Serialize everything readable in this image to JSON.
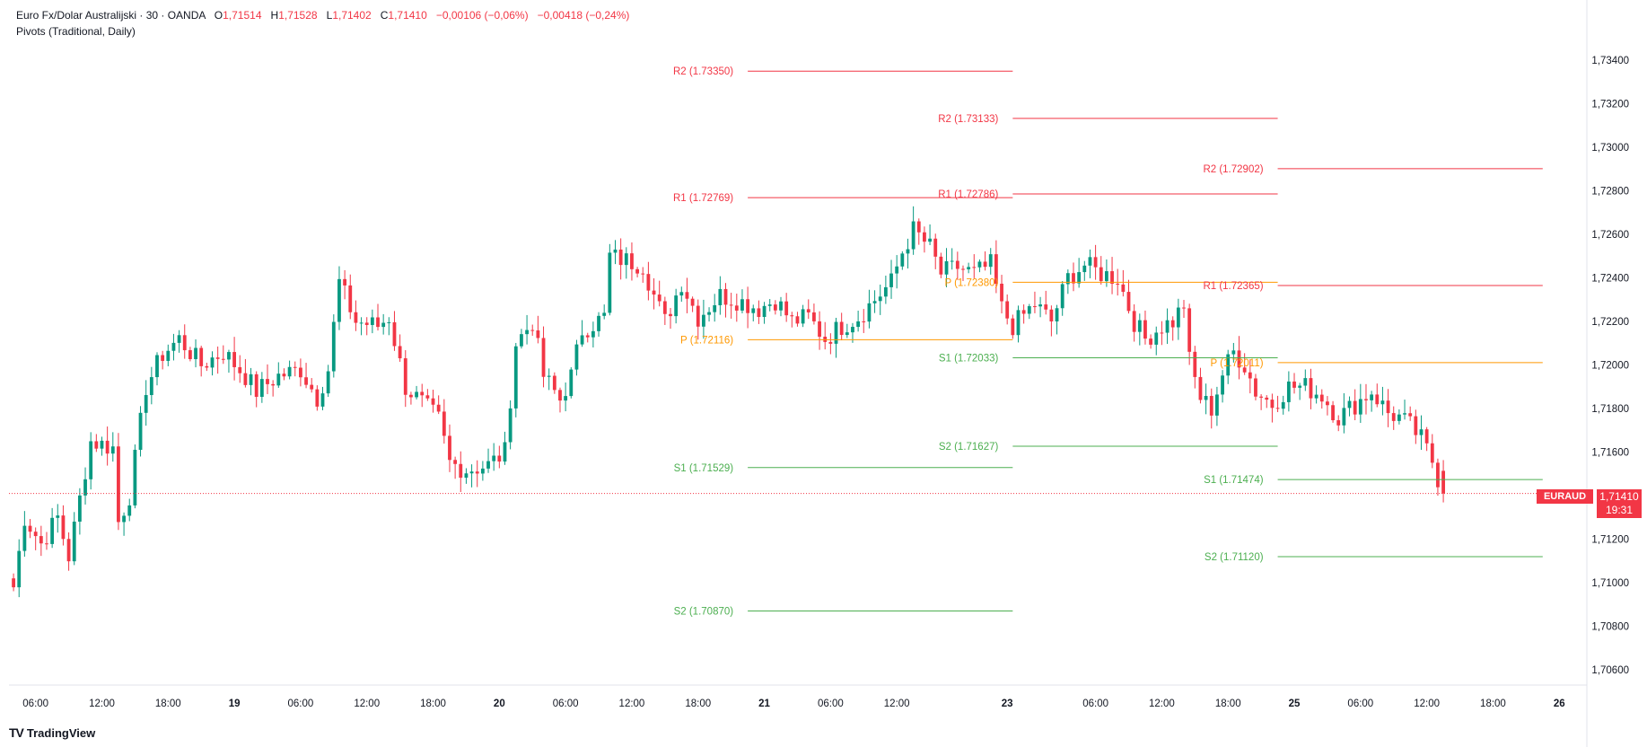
{
  "header": {
    "symbol": "Euro Fx/Dolar Australijski · 30 · OANDA",
    "o_label": "O",
    "o_value": "1,71514",
    "h_label": "H",
    "h_value": "1,71528",
    "l_label": "L",
    "l_value": "1,71402",
    "c_label": "C",
    "c_value": "1,71410",
    "change": "−0,00106 (−0,06%)",
    "change2": "−0,00418 (−0,24%)",
    "indicator": "Pivots (Traditional, Daily)"
  },
  "footer": {
    "brand": "TradingView",
    "logo_icon": "tradingview-logo-icon"
  },
  "last_price": {
    "symbol": "EURAUD",
    "price": "1,71410",
    "countdown": "19:31",
    "color": "#f23645"
  },
  "chart_data": {
    "type": "candlestick",
    "instrument": "EURAUD",
    "timeframe": "30",
    "y_axis": {
      "ticks": [
        "1,73400",
        "1,73200",
        "1,73000",
        "1,72800",
        "1,72600",
        "1,72400",
        "1,72200",
        "1,72000",
        "1,71800",
        "1,71600",
        "1,71200",
        "1,71000",
        "1,70800",
        "1,70600"
      ],
      "tick_values": [
        1.734,
        1.732,
        1.73,
        1.728,
        1.726,
        1.724,
        1.722,
        1.72,
        1.718,
        1.716,
        1.712,
        1.71,
        1.708,
        1.706
      ],
      "range": [
        1.7053,
        1.7352
      ]
    },
    "x_axis": {
      "ticks": [
        {
          "label": "06:00",
          "bold": false,
          "t": 4
        },
        {
          "label": "12:00",
          "bold": false,
          "t": 16
        },
        {
          "label": "18:00",
          "bold": false,
          "t": 28
        },
        {
          "label": "19",
          "bold": true,
          "t": 40
        },
        {
          "label": "06:00",
          "bold": false,
          "t": 52
        },
        {
          "label": "12:00",
          "bold": false,
          "t": 64
        },
        {
          "label": "18:00",
          "bold": false,
          "t": 76
        },
        {
          "label": "20",
          "bold": true,
          "t": 88
        },
        {
          "label": "06:00",
          "bold": false,
          "t": 100
        },
        {
          "label": "12:00",
          "bold": false,
          "t": 112
        },
        {
          "label": "18:00",
          "bold": false,
          "t": 124
        },
        {
          "label": "21",
          "bold": true,
          "t": 136
        },
        {
          "label": "06:00",
          "bold": false,
          "t": 148
        },
        {
          "label": "12:00",
          "bold": false,
          "t": 160
        },
        {
          "label": "23",
          "bold": true,
          "t": 180
        },
        {
          "label": "06:00",
          "bold": false,
          "t": 196
        },
        {
          "label": "12:00",
          "bold": false,
          "t": 208
        },
        {
          "label": "18:00",
          "bold": false,
          "t": 220
        },
        {
          "label": "25",
          "bold": true,
          "t": 232
        },
        {
          "label": "06:00",
          "bold": false,
          "t": 244
        },
        {
          "label": "12:00",
          "bold": false,
          "t": 256
        },
        {
          "label": "18:00",
          "bold": false,
          "t": 268
        },
        {
          "label": "26",
          "bold": true,
          "t": 280
        }
      ],
      "range": [
        -0.5,
        285
      ]
    },
    "up_color": "#089981",
    "down_color": "#f23645",
    "anchors": [
      {
        "t": 0,
        "v": 1.7098
      },
      {
        "t": 2,
        "v": 1.713
      },
      {
        "t": 5,
        "v": 1.7118
      },
      {
        "t": 8,
        "v": 1.713
      },
      {
        "t": 10,
        "v": 1.7112
      },
      {
        "t": 14,
        "v": 1.7165
      },
      {
        "t": 18,
        "v": 1.7162
      },
      {
        "t": 19,
        "v": 1.7128
      },
      {
        "t": 21,
        "v": 1.714
      },
      {
        "t": 24,
        "v": 1.719
      },
      {
        "t": 27,
        "v": 1.7205
      },
      {
        "t": 30,
        "v": 1.7212
      },
      {
        "t": 34,
        "v": 1.72
      },
      {
        "t": 38,
        "v": 1.7206
      },
      {
        "t": 42,
        "v": 1.7195
      },
      {
        "t": 44,
        "v": 1.7188
      },
      {
        "t": 48,
        "v": 1.7195
      },
      {
        "t": 52,
        "v": 1.7198
      },
      {
        "t": 55,
        "v": 1.7185
      },
      {
        "t": 57,
        "v": 1.7198
      },
      {
        "t": 59,
        "v": 1.7238
      },
      {
        "t": 62,
        "v": 1.722
      },
      {
        "t": 66,
        "v": 1.7218
      },
      {
        "t": 68,
        "v": 1.7222
      },
      {
        "t": 71,
        "v": 1.719
      },
      {
        "t": 75,
        "v": 1.718
      },
      {
        "t": 77,
        "v": 1.7175
      },
      {
        "t": 79,
        "v": 1.7155
      },
      {
        "t": 82,
        "v": 1.7152
      },
      {
        "t": 86,
        "v": 1.7154
      },
      {
        "t": 89,
        "v": 1.716
      },
      {
        "t": 91,
        "v": 1.721
      },
      {
        "t": 94,
        "v": 1.722
      },
      {
        "t": 96,
        "v": 1.7195
      },
      {
        "t": 99,
        "v": 1.7184
      },
      {
        "t": 101,
        "v": 1.7195
      },
      {
        "t": 103,
        "v": 1.7216
      },
      {
        "t": 107,
        "v": 1.7222
      },
      {
        "t": 108,
        "v": 1.725
      },
      {
        "t": 111,
        "v": 1.7248
      },
      {
        "t": 114,
        "v": 1.7246
      },
      {
        "t": 116,
        "v": 1.7232
      },
      {
        "t": 118,
        "v": 1.722
      },
      {
        "t": 121,
        "v": 1.7238
      },
      {
        "t": 124,
        "v": 1.7222
      },
      {
        "t": 128,
        "v": 1.7232
      },
      {
        "t": 131,
        "v": 1.723
      },
      {
        "t": 135,
        "v": 1.7226
      },
      {
        "t": 138,
        "v": 1.723
      },
      {
        "t": 141,
        "v": 1.722
      },
      {
        "t": 144,
        "v": 1.7222
      },
      {
        "t": 147,
        "v": 1.7212
      },
      {
        "t": 150,
        "v": 1.7218
      },
      {
        "t": 153,
        "v": 1.7222
      },
      {
        "t": 156,
        "v": 1.723
      },
      {
        "t": 159,
        "v": 1.7238
      },
      {
        "t": 161,
        "v": 1.7252
      },
      {
        "t": 163,
        "v": 1.7262
      },
      {
        "t": 166,
        "v": 1.7254
      },
      {
        "t": 168,
        "v": 1.7242
      },
      {
        "t": 171,
        "v": 1.7245
      },
      {
        "t": 174,
        "v": 1.7242
      },
      {
        "t": 177,
        "v": 1.7246
      },
      {
        "t": 179,
        "v": 1.7226
      },
      {
        "t": 181,
        "v": 1.7218
      },
      {
        "t": 185,
        "v": 1.7228
      },
      {
        "t": 188,
        "v": 1.722
      },
      {
        "t": 191,
        "v": 1.724
      },
      {
        "t": 194,
        "v": 1.7246
      },
      {
        "t": 197,
        "v": 1.7242
      },
      {
        "t": 200,
        "v": 1.724
      },
      {
        "t": 203,
        "v": 1.722
      },
      {
        "t": 205,
        "v": 1.7212
      },
      {
        "t": 208,
        "v": 1.7218
      },
      {
        "t": 210,
        "v": 1.722
      },
      {
        "t": 212,
        "v": 1.7228
      },
      {
        "t": 213,
        "v": 1.7202
      },
      {
        "t": 215,
        "v": 1.7185
      },
      {
        "t": 217,
        "v": 1.718
      },
      {
        "t": 219,
        "v": 1.7196
      },
      {
        "t": 221,
        "v": 1.7206
      },
      {
        "t": 223,
        "v": 1.72
      },
      {
        "t": 225,
        "v": 1.7188
      },
      {
        "t": 228,
        "v": 1.7182
      },
      {
        "t": 231,
        "v": 1.719
      },
      {
        "t": 234,
        "v": 1.719
      },
      {
        "t": 237,
        "v": 1.7186
      },
      {
        "t": 240,
        "v": 1.7176
      },
      {
        "t": 243,
        "v": 1.7182
      },
      {
        "t": 246,
        "v": 1.7188
      },
      {
        "t": 249,
        "v": 1.7178
      },
      {
        "t": 251,
        "v": 1.7176
      },
      {
        "t": 253,
        "v": 1.7172
      },
      {
        "t": 255,
        "v": 1.7166
      },
      {
        "t": 257,
        "v": 1.7156
      },
      {
        "t": 258,
        "v": 1.7148
      },
      {
        "t": 259,
        "v": 1.7141
      }
    ],
    "pivot_days": [
      {
        "t_start": 133,
        "t_end": 181,
        "levels": [
          {
            "name": "R2",
            "value": 1.7335,
            "label": "R2 (1.73350)",
            "color": "#f23645"
          },
          {
            "name": "R1",
            "value": 1.72769,
            "label": "R1 (1.72769)",
            "color": "#f23645"
          },
          {
            "name": "P",
            "value": 1.72116,
            "label": "P (1.72116)",
            "color": "#ff9800"
          },
          {
            "name": "S1",
            "value": 1.71529,
            "label": "S1 (1.71529)",
            "color": "#4caf50"
          },
          {
            "name": "S2",
            "value": 1.7087,
            "label": "S2 (1.70870)",
            "color": "#4caf50"
          }
        ]
      },
      {
        "t_start": 181,
        "t_end": 229,
        "levels": [
          {
            "name": "R2",
            "value": 1.73133,
            "label": "R2 (1.73133)",
            "color": "#f23645"
          },
          {
            "name": "R1",
            "value": 1.72786,
            "label": "R1 (1.72786)",
            "color": "#f23645"
          },
          {
            "name": "P",
            "value": 1.7238,
            "label": "P (1.72380)",
            "color": "#ff9800"
          },
          {
            "name": "S1",
            "value": 1.72033,
            "label": "S1 (1.72033)",
            "color": "#4caf50"
          },
          {
            "name": "S2",
            "value": 1.71627,
            "label": "S2 (1.71627)",
            "color": "#4caf50"
          }
        ]
      },
      {
        "t_start": 229,
        "t_end": 277,
        "levels": [
          {
            "name": "R2",
            "value": 1.72902,
            "label": "R2 (1.72902)",
            "color": "#f23645"
          },
          {
            "name": "R1",
            "value": 1.72365,
            "label": "R1 (1.72365)",
            "color": "#f23645"
          },
          {
            "name": "P",
            "value": 1.72011,
            "label": "P (1.72011)",
            "color": "#ff9800"
          },
          {
            "name": "S1",
            "value": 1.71474,
            "label": "S1 (1.71474)",
            "color": "#4caf50"
          },
          {
            "name": "S2",
            "value": 1.7112,
            "label": "S2 (1.71120)",
            "color": "#4caf50"
          }
        ]
      }
    ]
  }
}
